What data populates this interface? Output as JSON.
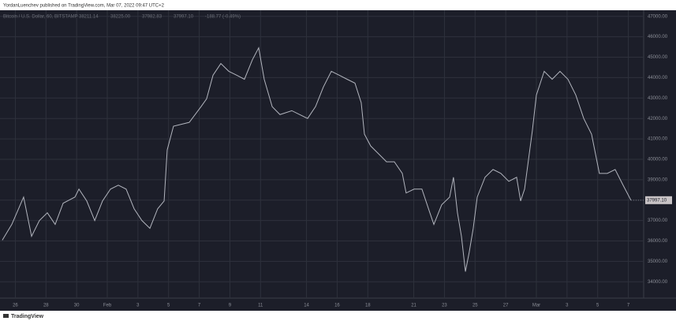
{
  "header": "YordanLuenchev published on TradingView.com, Mar 07, 2022 09:47 UTC+2",
  "footer": "TradingView",
  "chart_data": {
    "type": "line",
    "legend_text": [
      "Bitcoin / U.S. Dollar, 60, BITSTAMP",
      "38211.14",
      "38225.00",
      "37982.83",
      "37997.10",
      "-188.77 (-0.49%)"
    ],
    "last_price_label": "37997.10",
    "color": "#b2b5be",
    "grid": true,
    "xlim": [
      -1,
      41
    ],
    "xticks": [
      {
        "value": 0,
        "label": "26"
      },
      {
        "value": 2,
        "label": "28"
      },
      {
        "value": 4,
        "label": "30"
      },
      {
        "value": 6,
        "label": "Feb"
      },
      {
        "value": 8,
        "label": "3"
      },
      {
        "value": 10,
        "label": "5"
      },
      {
        "value": 12,
        "label": "7"
      },
      {
        "value": 14,
        "label": "9"
      },
      {
        "value": 16,
        "label": "11"
      },
      {
        "value": 19,
        "label": "14"
      },
      {
        "value": 21,
        "label": "16"
      },
      {
        "value": 23,
        "label": "18"
      },
      {
        "value": 26,
        "label": "21"
      },
      {
        "value": 28,
        "label": "23"
      },
      {
        "value": 30,
        "label": "25"
      },
      {
        "value": 32,
        "label": "27"
      },
      {
        "value": 34,
        "label": "Mar"
      },
      {
        "value": 36,
        "label": "3"
      },
      {
        "value": 38,
        "label": "5"
      },
      {
        "value": 40,
        "label": "7"
      }
    ],
    "ylim": [
      33200,
      47300
    ],
    "yticks": [
      {
        "value": 34000,
        "label": "34000.00"
      },
      {
        "value": 35000,
        "label": "35000.00"
      },
      {
        "value": 36000,
        "label": "36000.00"
      },
      {
        "value": 37000,
        "label": "37000.00"
      },
      {
        "value": 38000,
        "label": "38000.00"
      },
      {
        "value": 39000,
        "label": "39000.00"
      },
      {
        "value": 40000,
        "label": "40000.00"
      },
      {
        "value": 41000,
        "label": "41000.00"
      },
      {
        "value": 42000,
        "label": "42000.00"
      },
      {
        "value": 43000,
        "label": "43000.00"
      },
      {
        "value": 44000,
        "label": "44000.00"
      },
      {
        "value": 45000,
        "label": "45000.00"
      },
      {
        "value": 46000,
        "label": "46000.00"
      },
      {
        "value": 47000,
        "label": "47000.00"
      }
    ],
    "x": [
      -0.85,
      -0.23,
      0.54,
      1.06,
      1.57,
      2.09,
      2.6,
      3.12,
      3.89,
      4.15,
      4.66,
      5.18,
      5.69,
      6.21,
      6.72,
      7.23,
      7.75,
      8.26,
      8.78,
      9.29,
      9.71,
      9.91,
      10.32,
      11.35,
      12.12,
      12.48,
      12.9,
      13.41,
      13.93,
      14.44,
      14.95,
      15.47,
      15.88,
      16.24,
      16.76,
      17.27,
      18.04,
      18.56,
      19.07,
      19.59,
      20.1,
      20.62,
      21.13,
      21.65,
      22.16,
      22.57,
      22.78,
      23.19,
      23.7,
      24.22,
      24.73,
      25.25,
      25.5,
      26.02,
      26.53,
      27.05,
      27.31,
      27.82,
      28.34,
      28.59,
      28.85,
      29.11,
      29.37,
      29.62,
      29.88,
      30.14,
      30.65,
      31.17,
      31.68,
      32.2,
      32.71,
      32.97,
      33.23,
      33.74,
      34.0,
      34.51,
      35.03,
      35.54,
      36.06,
      36.57,
      37.09,
      37.6,
      38.11,
      38.63,
      39.14,
      39.66,
      40.17
    ],
    "series": [
      {
        "color": "#b2b5be",
        "values": [
          36040,
          36810,
          38150,
          36230,
          37000,
          37380,
          36810,
          37850,
          38150,
          38540,
          37960,
          37000,
          37960,
          38540,
          38730,
          38540,
          37580,
          37000,
          36620,
          37580,
          37960,
          40460,
          41620,
          41810,
          42580,
          42960,
          44120,
          44690,
          44310,
          44120,
          43920,
          44880,
          45460,
          43920,
          42580,
          42190,
          42380,
          42190,
          42000,
          42580,
          43540,
          44310,
          44120,
          43920,
          43730,
          42770,
          41230,
          40650,
          40270,
          39880,
          39880,
          39310,
          38350,
          38540,
          38540,
          37380,
          36810,
          37770,
          38150,
          39120,
          37380,
          36230,
          34500,
          35460,
          36620,
          38150,
          39120,
          39500,
          39310,
          38920,
          39120,
          37960,
          38540,
          41420,
          43150,
          44310,
          43920,
          44310,
          43920,
          43150,
          42000,
          41230,
          39310,
          39310,
          39500,
          38730,
          37997.1
        ]
      }
    ]
  }
}
